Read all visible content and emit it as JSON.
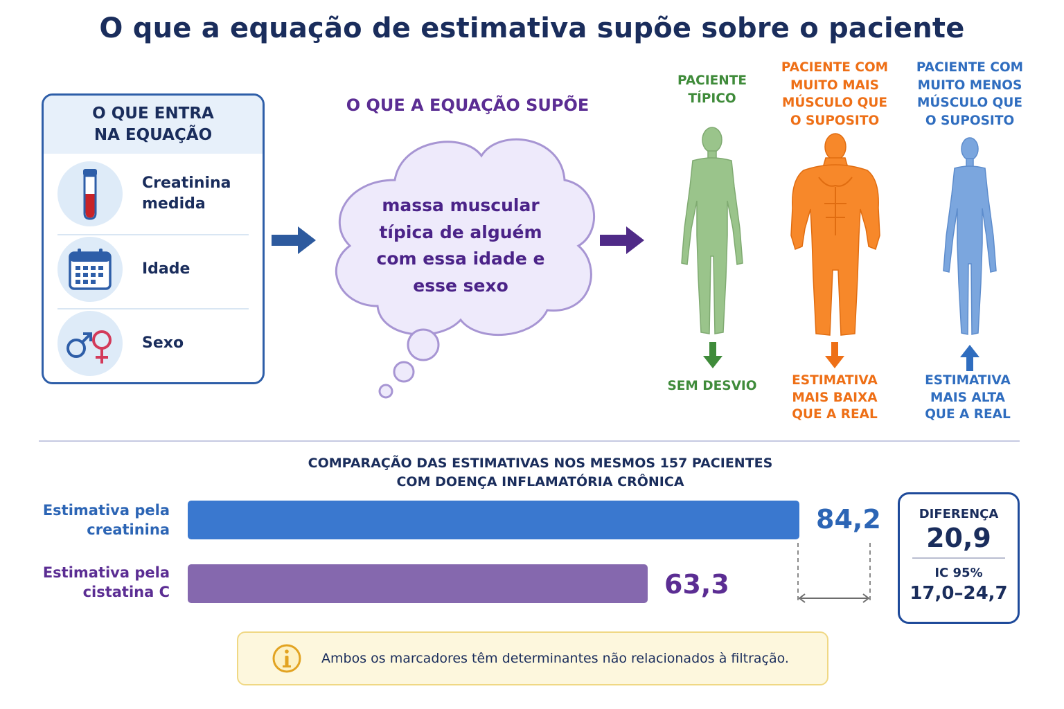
{
  "title": "O que a equação de estimativa supõe sobre o paciente",
  "inputs": {
    "heading": [
      "O QUE ENTRA",
      "NA EQUAÇÃO"
    ],
    "items": [
      {
        "label": "Creatinina\nmedida",
        "icon": "test-tube-icon"
      },
      {
        "label": "Idade",
        "icon": "calendar-icon"
      },
      {
        "label": "Sexo",
        "icon": "gender-symbols-icon"
      }
    ]
  },
  "assumption": {
    "heading": "O QUE A EQUAÇÃO SUPÕE",
    "text": "massa muscular típica de alguém com essa idade e esse sexo"
  },
  "patients": [
    {
      "heading": [
        "PACIENTE",
        "TÍPICO"
      ],
      "outcome": [
        "SEM DESVIO"
      ],
      "arrow": "down",
      "color": "#3f8b3a",
      "figure_color": "#9ac48b"
    },
    {
      "heading": [
        "PACIENTE COM",
        "MUITO MAIS",
        "MÚSCULO QUE",
        "O SUPOSITO"
      ],
      "outcome": [
        "ESTIMATIVA",
        "MAIS BAIXA",
        "QUE A REAL"
      ],
      "arrow": "down",
      "color": "#ee6f16",
      "figure_color": "#f7882a"
    },
    {
      "heading": [
        "PACIENTE COM",
        "MUITO MENOS",
        "MÚSCULO QUE",
        "O SUPOSITO"
      ],
      "outcome": [
        "ESTIMATIVA",
        "MAIS ALTA",
        "QUE A REAL"
      ],
      "arrow": "up",
      "color": "#2f6dbf",
      "figure_color": "#7ba6de"
    }
  ],
  "comparison": {
    "title": [
      "COMPARAÇÃO DAS ESTIMATIVAS NOS MESMOS 157 PACIENTES",
      "COM DOENÇA INFLAMATÓRIA CRÔNICA"
    ],
    "bars": [
      {
        "label": [
          "Estimativa pela",
          "creatinina"
        ],
        "value": 84.2,
        "display": "84,2",
        "color": "#3a78cf",
        "text_color": "#2c65b5"
      },
      {
        "label": [
          "Estimativa pela",
          "cistatina C"
        ],
        "value": 63.3,
        "display": "63,3",
        "color": "#8568ae",
        "text_color": "#5b2d93"
      }
    ],
    "difference": {
      "label": "DIFERENÇA",
      "value": "20,9",
      "ci_label": "IC 95%",
      "ci_value": "17,0–24,7"
    }
  },
  "note": {
    "icon": "info-icon",
    "text": "Ambos os marcadores têm determinantes não relacionados à filtração."
  }
}
